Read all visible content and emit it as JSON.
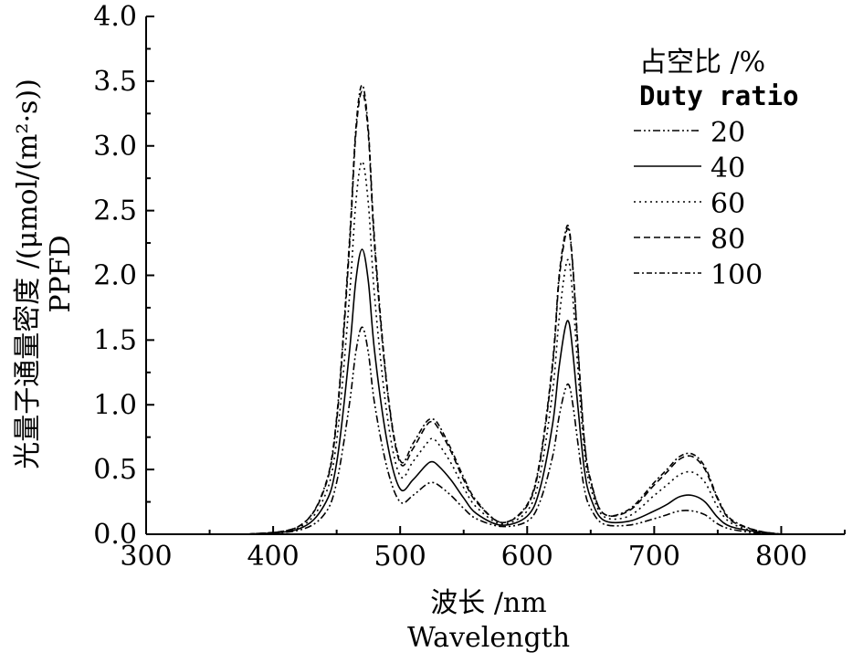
{
  "chart_data": {
    "type": "line",
    "xlabel": {
      "cn": "波长 /nm",
      "en": "Wavelength"
    },
    "ylabel": {
      "cn": "光量子通量密度 /(μmol/(m²·s))",
      "en": "PPFD"
    },
    "xlim": [
      300,
      850
    ],
    "ylim": [
      0,
      4
    ],
    "x_ticks": [
      300,
      400,
      500,
      600,
      700,
      800
    ],
    "x_tick_labels": [
      "300",
      "400",
      "500",
      "600",
      "700",
      "800"
    ],
    "y_ticks": [
      0,
      0.5,
      1,
      1.5,
      2,
      2.5,
      3,
      3.5,
      4
    ],
    "y_tick_labels": [
      "0.0",
      "0.5",
      "1.0",
      "1.5",
      "2.0",
      "2.5",
      "3.0",
      "3.5",
      "4.0"
    ],
    "grid": false,
    "legend": {
      "position": "top-right",
      "title_cn": "占空比 /%",
      "title_en": "Duty ratio",
      "entries": [
        "20",
        "40",
        "60",
        "80",
        "100"
      ]
    },
    "x": [
      380,
      420,
      440,
      450,
      460,
      465,
      470,
      475,
      480,
      490,
      500,
      510,
      520,
      525,
      530,
      540,
      550,
      560,
      580,
      600,
      610,
      620,
      625,
      630,
      633,
      636,
      640,
      645,
      650,
      660,
      680,
      700,
      710,
      720,
      730,
      740,
      750,
      760,
      780,
      800
    ],
    "series": [
      {
        "name": "20",
        "dash": "8,3,2,3,2,3",
        "values": [
          0,
          0.03,
          0.15,
          0.4,
          1.0,
          1.4,
          1.6,
          1.4,
          1.0,
          0.5,
          0.25,
          0.3,
          0.38,
          0.4,
          0.38,
          0.3,
          0.2,
          0.12,
          0.06,
          0.1,
          0.25,
          0.6,
          0.9,
          1.12,
          1.15,
          1.0,
          0.7,
          0.35,
          0.2,
          0.08,
          0.07,
          0.12,
          0.15,
          0.18,
          0.18,
          0.15,
          0.08,
          0.04,
          0.01,
          0.0
        ]
      },
      {
        "name": "40",
        "dash": "",
        "values": [
          0,
          0.04,
          0.22,
          0.55,
          1.4,
          1.95,
          2.2,
          1.95,
          1.4,
          0.7,
          0.35,
          0.42,
          0.53,
          0.56,
          0.53,
          0.42,
          0.28,
          0.16,
          0.07,
          0.14,
          0.35,
          0.85,
          1.28,
          1.6,
          1.63,
          1.4,
          0.98,
          0.5,
          0.28,
          0.11,
          0.1,
          0.18,
          0.23,
          0.29,
          0.3,
          0.25,
          0.13,
          0.06,
          0.02,
          0.0
        ]
      },
      {
        "name": "60",
        "dash": "2,4",
        "values": [
          0,
          0.05,
          0.28,
          0.72,
          1.82,
          2.55,
          2.88,
          2.55,
          1.82,
          0.9,
          0.45,
          0.56,
          0.69,
          0.74,
          0.7,
          0.55,
          0.36,
          0.21,
          0.08,
          0.18,
          0.45,
          1.1,
          1.65,
          2.05,
          2.1,
          1.82,
          1.27,
          0.64,
          0.36,
          0.14,
          0.14,
          0.3,
          0.38,
          0.46,
          0.48,
          0.4,
          0.21,
          0.09,
          0.02,
          0.0
        ]
      },
      {
        "name": "80",
        "dash": "7,4",
        "values": [
          0,
          0.06,
          0.34,
          0.87,
          2.2,
          3.08,
          3.42,
          3.08,
          2.2,
          1.1,
          0.55,
          0.66,
          0.83,
          0.87,
          0.82,
          0.64,
          0.42,
          0.25,
          0.09,
          0.22,
          0.55,
          1.3,
          1.95,
          2.3,
          2.34,
          2.05,
          1.43,
          0.72,
          0.41,
          0.16,
          0.18,
          0.38,
          0.48,
          0.58,
          0.6,
          0.5,
          0.27,
          0.11,
          0.03,
          0.0
        ]
      },
      {
        "name": "100",
        "dash": "6,3,2,3",
        "values": [
          0,
          0.06,
          0.35,
          0.9,
          2.25,
          3.12,
          3.47,
          3.12,
          2.25,
          1.12,
          0.57,
          0.7,
          0.86,
          0.89,
          0.85,
          0.66,
          0.44,
          0.26,
          0.09,
          0.23,
          0.57,
          1.33,
          1.98,
          2.33,
          2.36,
          2.07,
          1.45,
          0.73,
          0.42,
          0.16,
          0.19,
          0.4,
          0.5,
          0.6,
          0.62,
          0.52,
          0.28,
          0.12,
          0.03,
          0.0
        ]
      }
    ]
  }
}
